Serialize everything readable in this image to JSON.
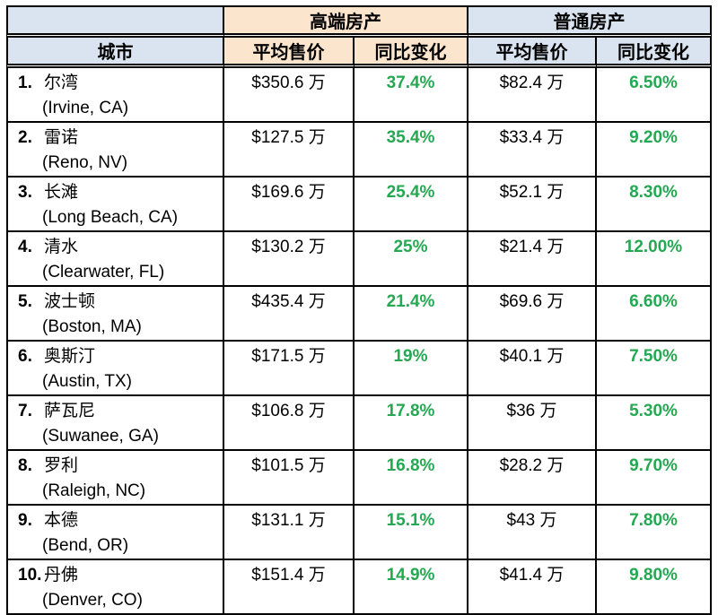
{
  "chart_data": {
    "type": "table",
    "title": "",
    "header": {
      "group_luxury": "高端房产",
      "group_regular": "普通房产",
      "city": "城市",
      "avg_price": "平均售价",
      "yoy": "同比变化"
    },
    "columns": [
      "城市",
      "高端房产 平均售价",
      "高端房产 同比变化",
      "普通房产 平均售价",
      "普通房产 同比变化"
    ],
    "rows": [
      {
        "rank": "1.",
        "city_cn": "尔湾",
        "city_en": "(Irvine, CA)",
        "lux_price": "$350.6 万",
        "lux_yoy": "37.4%",
        "reg_price": "$82.4 万",
        "reg_yoy": "6.50%"
      },
      {
        "rank": "2.",
        "city_cn": "雷诺",
        "city_en": "(Reno, NV)",
        "lux_price": "$127.5 万",
        "lux_yoy": "35.4%",
        "reg_price": "$33.4 万",
        "reg_yoy": "9.20%"
      },
      {
        "rank": "3.",
        "city_cn": "长滩",
        "city_en": "(Long Beach, CA)",
        "lux_price": "$169.6 万",
        "lux_yoy": "25.4%",
        "reg_price": "$52.1 万",
        "reg_yoy": "8.30%"
      },
      {
        "rank": "4.",
        "city_cn": "清水",
        "city_en": "(Clearwater, FL)",
        "lux_price": "$130.2 万",
        "lux_yoy": "25%",
        "reg_price": "$21.4 万",
        "reg_yoy": "12.00%"
      },
      {
        "rank": "5.",
        "city_cn": "波士顿",
        "city_en": "(Boston, MA)",
        "lux_price": "$435.4 万",
        "lux_yoy": "21.4%",
        "reg_price": "$69.6 万",
        "reg_yoy": "6.60%"
      },
      {
        "rank": "6.",
        "city_cn": "奥斯汀",
        "city_en": "(Austin, TX)",
        "lux_price": "$171.5 万",
        "lux_yoy": "19%",
        "reg_price": "$40.1 万",
        "reg_yoy": "7.50%"
      },
      {
        "rank": "7.",
        "city_cn": "萨瓦尼",
        "city_en": "(Suwanee, GA)",
        "lux_price": "$106.8 万",
        "lux_yoy": "17.8%",
        "reg_price": "$36 万",
        "reg_yoy": "5.30%"
      },
      {
        "rank": "8.",
        "city_cn": "罗利",
        "city_en": "(Raleigh, NC)",
        "lux_price": "$101.5 万",
        "lux_yoy": "16.8%",
        "reg_price": "$28.2 万",
        "reg_yoy": "9.70%"
      },
      {
        "rank": "9.",
        "city_cn": "本德",
        "city_en": "(Bend, OR)",
        "lux_price": "$131.1 万",
        "lux_yoy": "15.1%",
        "reg_price": "$43 万",
        "reg_yoy": "7.80%"
      },
      {
        "rank": "10.",
        "city_cn": "丹佛",
        "city_en": "(Denver, CO)",
        "lux_price": "$151.4 万",
        "lux_yoy": "14.9%",
        "reg_price": "$41.4 万",
        "reg_yoy": "9.80%"
      }
    ],
    "colors": {
      "header_blue": "#dae4f0",
      "header_peach": "#fce5cd",
      "positive_green": "#25a852",
      "border": "#000000"
    }
  }
}
